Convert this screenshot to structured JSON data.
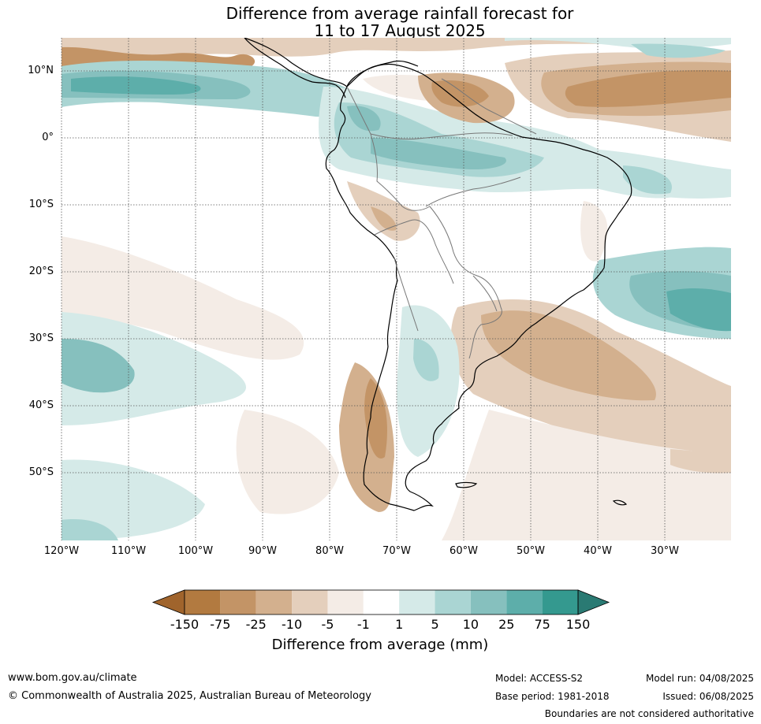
{
  "title": {
    "line1": "Difference from average rainfall forecast for",
    "line2": "11 to 17 August 2025"
  },
  "map": {
    "lat_labels": [
      "10°N",
      "0°",
      "10°S",
      "20°S",
      "30°S",
      "40°S",
      "50°S"
    ],
    "lon_labels": [
      "120°W",
      "110°W",
      "100°W",
      "90°W",
      "80°W",
      "70°W",
      "60°W",
      "50°W",
      "40°W",
      "30°W"
    ],
    "grid": true,
    "grid_style": "dotted"
  },
  "colorbar": {
    "ticks": [
      "-150",
      "-75",
      "-25",
      "-10",
      "-5",
      "-1",
      "1",
      "5",
      "10",
      "25",
      "75",
      "150"
    ],
    "colors": [
      "#a0642c",
      "#b27a40",
      "#c39466",
      "#d3b08e",
      "#e4cfbc",
      "#f4ece6",
      "#ffffff",
      "#d5eae8",
      "#aad5d3",
      "#86c0be",
      "#5daeaa",
      "#34998f",
      "#2a7a73"
    ],
    "label": "Difference from average (mm)"
  },
  "footer": {
    "website": "www.bom.gov.au/climate",
    "copyright": "© Commonwealth of Australia 2025, Australian Bureau of Meteorology",
    "model": "Model: ACCESS-S2",
    "base_period": "Base period: 1981-2018",
    "model_run": "Model run: 04/08/2025",
    "issued": "Issued: 06/08/2025",
    "disclaimer": "Boundaries are not considered authoritative"
  }
}
